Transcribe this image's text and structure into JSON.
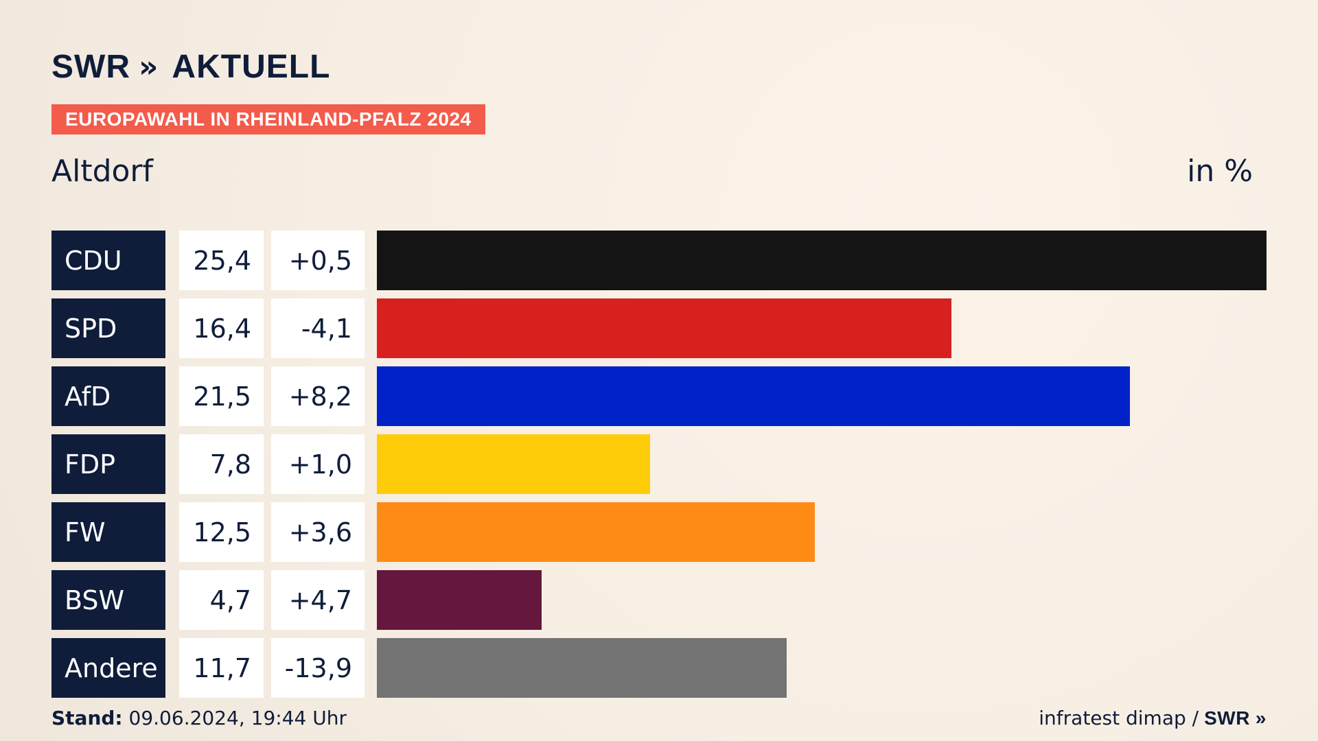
{
  "brand": {
    "swr": "SWR",
    "arrows": "»",
    "aktuell": "AKTUELL"
  },
  "header": {
    "badge": "EUROPAWAHL IN RHEINLAND-PFALZ 2024",
    "location": "Altdorf",
    "unit": "in %"
  },
  "footer": {
    "stand_label": "Stand:",
    "stand_value": "09.06.2024, 19:44 Uhr",
    "source": "infratest dimap /",
    "swr_small": "SWR",
    "arrows_small": "»"
  },
  "chart_data": {
    "type": "bar",
    "orientation": "horizontal",
    "title": "",
    "unit": "in %",
    "categories": [
      "CDU",
      "SPD",
      "AfD",
      "FDP",
      "FW",
      "BSW",
      "Andere"
    ],
    "values": [
      25.4,
      16.4,
      21.5,
      7.8,
      12.5,
      4.7,
      11.7
    ],
    "value_labels": [
      "25,4",
      "16,4",
      "21,5",
      "7,8",
      "12,5",
      "4,7",
      "11,7"
    ],
    "change_labels": [
      "+0,5",
      "-4,1",
      "+8,2",
      "+1,0",
      "+3,6",
      "+4,7",
      "-13,9"
    ],
    "colors": [
      "#141414",
      "#d7201f",
      "#0022c8",
      "#ffcc0a",
      "#ff8b17",
      "#65173e",
      "#737373"
    ],
    "xlim": [
      0,
      25.4
    ]
  },
  "rows": [
    {
      "party": "CDU",
      "value": "25,4",
      "change": "+0,5"
    },
    {
      "party": "SPD",
      "value": "16,4",
      "change": "-4,1"
    },
    {
      "party": "AfD",
      "value": "21,5",
      "change": "+8,2"
    },
    {
      "party": "FDP",
      "value": "7,8",
      "change": "+1,0"
    },
    {
      "party": "FW",
      "value": "12,5",
      "change": "+3,6"
    },
    {
      "party": "BSW",
      "value": "4,7",
      "change": "+4,7"
    },
    {
      "party": "Andere",
      "value": "11,7",
      "change": "-13,9"
    }
  ]
}
